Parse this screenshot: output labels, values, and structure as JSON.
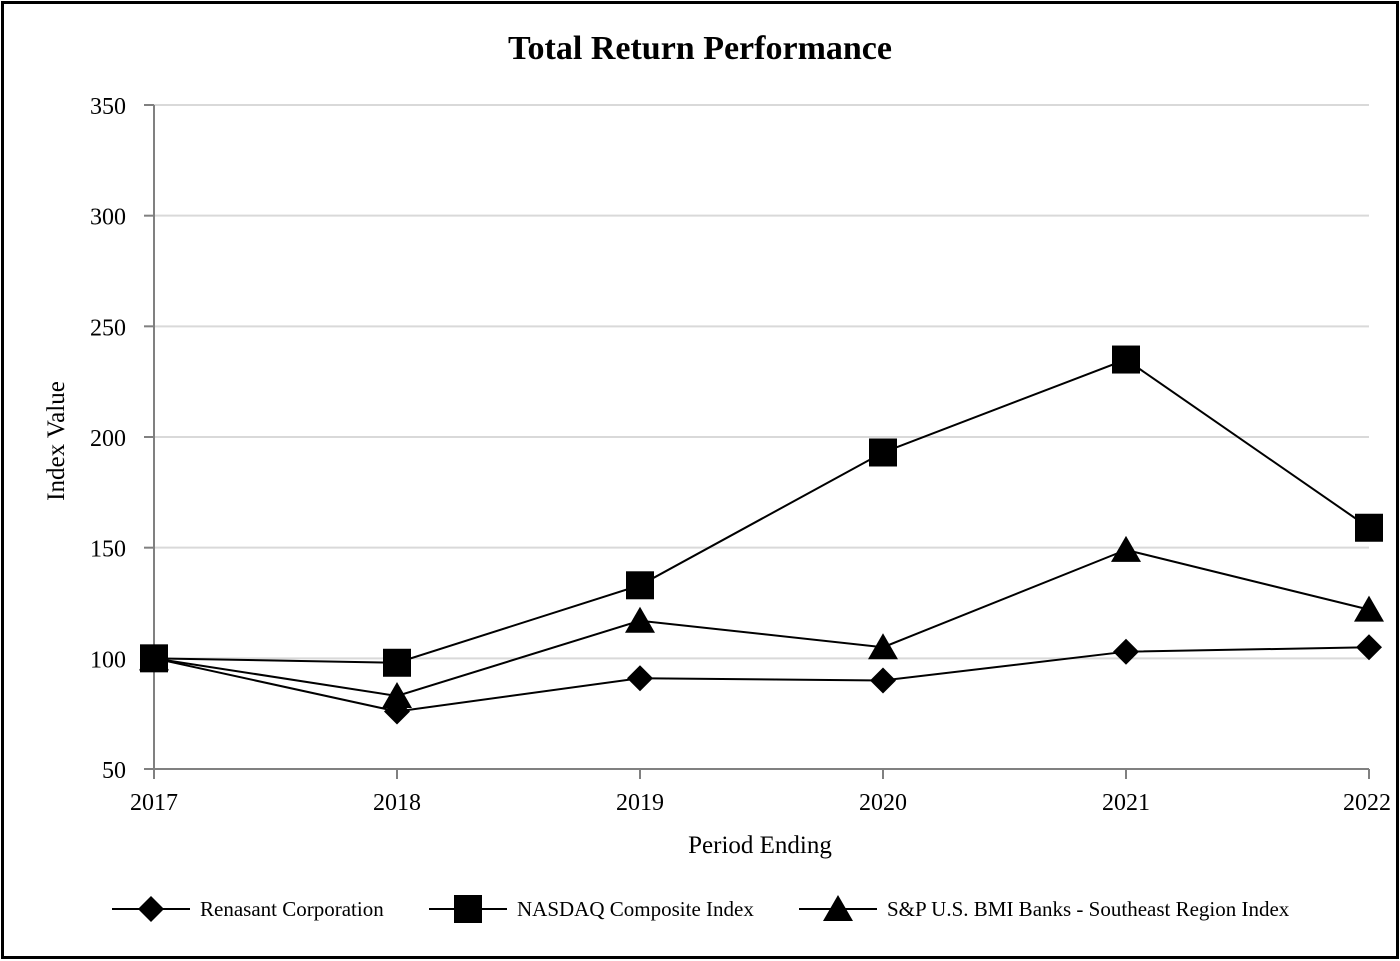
{
  "chart_data": {
    "type": "line",
    "title": "Total Return Performance",
    "xlabel": "Period Ending",
    "ylabel": "Index Value",
    "x": [
      "2017",
      "2018",
      "2019",
      "2020",
      "2021",
      "2022"
    ],
    "ylim": [
      50,
      350
    ],
    "yticks": [
      50,
      100,
      150,
      200,
      250,
      300,
      350
    ],
    "grid": true,
    "legend_position": "bottom",
    "series": [
      {
        "name": "Renasant Corporation",
        "marker": "diamond",
        "values": [
          100,
          76,
          91,
          90,
          103,
          105
        ]
      },
      {
        "name": "NASDAQ Composite Index",
        "marker": "square",
        "values": [
          100,
          98,
          133,
          193,
          235,
          159
        ]
      },
      {
        "name": "S&P U.S. BMI Banks - Southeast Region Index",
        "marker": "triangle",
        "values": [
          100,
          83,
          117,
          105,
          149,
          122
        ]
      }
    ],
    "colors": {
      "line": "#000000",
      "grid": "#d9d9d9",
      "axis": "#808080"
    }
  }
}
